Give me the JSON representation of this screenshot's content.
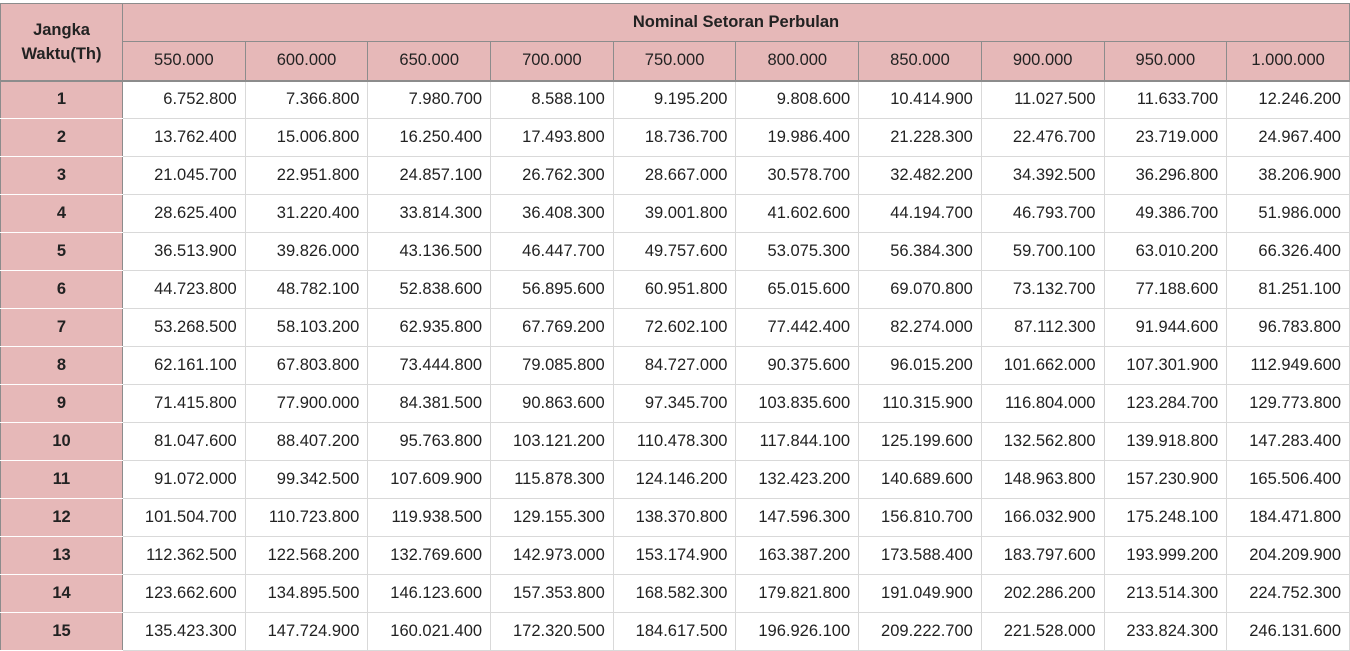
{
  "table": {
    "corner_line1": "Jangka",
    "corner_line2": "Waktu(Th)",
    "title": "Nominal Setoran Perbulan",
    "columns": [
      "550.000",
      "600.000",
      "650.000",
      "700.000",
      "750.000",
      "800.000",
      "850.000",
      "900.000",
      "950.000",
      "1.000.000"
    ],
    "rows": [
      {
        "year": "1",
        "values": [
          "6.752.800",
          "7.366.800",
          "7.980.700",
          "8.588.100",
          "9.195.200",
          "9.808.600",
          "10.414.900",
          "11.027.500",
          "11.633.700",
          "12.246.200"
        ]
      },
      {
        "year": "2",
        "values": [
          "13.762.400",
          "15.006.800",
          "16.250.400",
          "17.493.800",
          "18.736.700",
          "19.986.400",
          "21.228.300",
          "22.476.700",
          "23.719.000",
          "24.967.400"
        ]
      },
      {
        "year": "3",
        "values": [
          "21.045.700",
          "22.951.800",
          "24.857.100",
          "26.762.300",
          "28.667.000",
          "30.578.700",
          "32.482.200",
          "34.392.500",
          "36.296.800",
          "38.206.900"
        ]
      },
      {
        "year": "4",
        "values": [
          "28.625.400",
          "31.220.400",
          "33.814.300",
          "36.408.300",
          "39.001.800",
          "41.602.600",
          "44.194.700",
          "46.793.700",
          "49.386.700",
          "51.986.000"
        ]
      },
      {
        "year": "5",
        "values": [
          "36.513.900",
          "39.826.000",
          "43.136.500",
          "46.447.700",
          "49.757.600",
          "53.075.300",
          "56.384.300",
          "59.700.100",
          "63.010.200",
          "66.326.400"
        ]
      },
      {
        "year": "6",
        "values": [
          "44.723.800",
          "48.782.100",
          "52.838.600",
          "56.895.600",
          "60.951.800",
          "65.015.600",
          "69.070.800",
          "73.132.700",
          "77.188.600",
          "81.251.100"
        ]
      },
      {
        "year": "7",
        "values": [
          "53.268.500",
          "58.103.200",
          "62.935.800",
          "67.769.200",
          "72.602.100",
          "77.442.400",
          "82.274.000",
          "87.112.300",
          "91.944.600",
          "96.783.800"
        ]
      },
      {
        "year": "8",
        "values": [
          "62.161.100",
          "67.803.800",
          "73.444.800",
          "79.085.800",
          "84.727.000",
          "90.375.600",
          "96.015.200",
          "101.662.000",
          "107.301.900",
          "112.949.600"
        ]
      },
      {
        "year": "9",
        "values": [
          "71.415.800",
          "77.900.000",
          "84.381.500",
          "90.863.600",
          "97.345.700",
          "103.835.600",
          "110.315.900",
          "116.804.000",
          "123.284.700",
          "129.773.800"
        ]
      },
      {
        "year": "10",
        "values": [
          "81.047.600",
          "88.407.200",
          "95.763.800",
          "103.121.200",
          "110.478.300",
          "117.844.100",
          "125.199.600",
          "132.562.800",
          "139.918.800",
          "147.283.400"
        ]
      },
      {
        "year": "11",
        "values": [
          "91.072.000",
          "99.342.500",
          "107.609.900",
          "115.878.300",
          "124.146.200",
          "132.423.200",
          "140.689.600",
          "148.963.800",
          "157.230.900",
          "165.506.400"
        ]
      },
      {
        "year": "12",
        "values": [
          "101.504.700",
          "110.723.800",
          "119.938.500",
          "129.155.300",
          "138.370.800",
          "147.596.300",
          "156.810.700",
          "166.032.900",
          "175.248.100",
          "184.471.800"
        ]
      },
      {
        "year": "13",
        "values": [
          "112.362.500",
          "122.568.200",
          "132.769.600",
          "142.973.000",
          "153.174.900",
          "163.387.200",
          "173.588.400",
          "183.797.600",
          "193.999.200",
          "204.209.900"
        ]
      },
      {
        "year": "14",
        "values": [
          "123.662.600",
          "134.895.500",
          "146.123.600",
          "157.353.800",
          "168.582.300",
          "179.821.800",
          "191.049.900",
          "202.286.200",
          "213.514.300",
          "224.752.300"
        ]
      },
      {
        "year": "15",
        "values": [
          "135.423.300",
          "147.724.900",
          "160.021.400",
          "172.320.500",
          "184.617.500",
          "196.926.100",
          "209.222.700",
          "221.528.000",
          "233.824.300",
          "246.131.600"
        ]
      }
    ]
  }
}
